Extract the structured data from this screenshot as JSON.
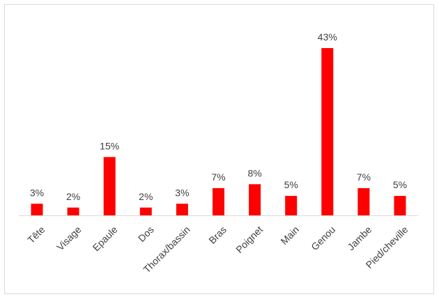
{
  "chart_data": {
    "type": "bar",
    "categories": [
      "Tête",
      "Visage",
      "Epaule",
      "Dos",
      "Thorax/bassin",
      "Bras",
      "Poignet",
      "Main",
      "Genou",
      "Jambe",
      "Pied/cheville"
    ],
    "values": [
      3,
      2,
      15,
      2,
      3,
      7,
      8,
      5,
      43,
      7,
      5
    ],
    "value_labels": [
      "3%",
      "2%",
      "15%",
      "2%",
      "3%",
      "7%",
      "8%",
      "5%",
      "43%",
      "7%",
      "5%"
    ],
    "unit": "%",
    "title": "",
    "xlabel": "",
    "ylabel": "",
    "ylim": [
      0,
      43
    ],
    "grid": false,
    "legend": "none",
    "bar_color": "#ff0000"
  }
}
